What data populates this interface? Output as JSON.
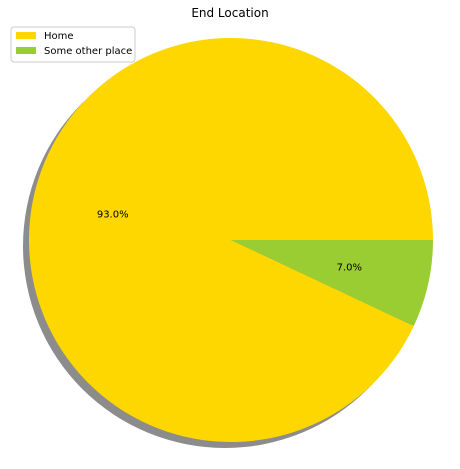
{
  "chart_data": {
    "type": "pie",
    "title": "End Location",
    "legend_position": "top-left",
    "shadow": true,
    "slices": [
      {
        "label": "Home",
        "value": 93.0,
        "pct_label": "93.0%",
        "color": "#FFD700"
      },
      {
        "label": "Some other place",
        "value": 7.0,
        "pct_label": "7.0%",
        "color": "#9ACD32"
      }
    ]
  }
}
